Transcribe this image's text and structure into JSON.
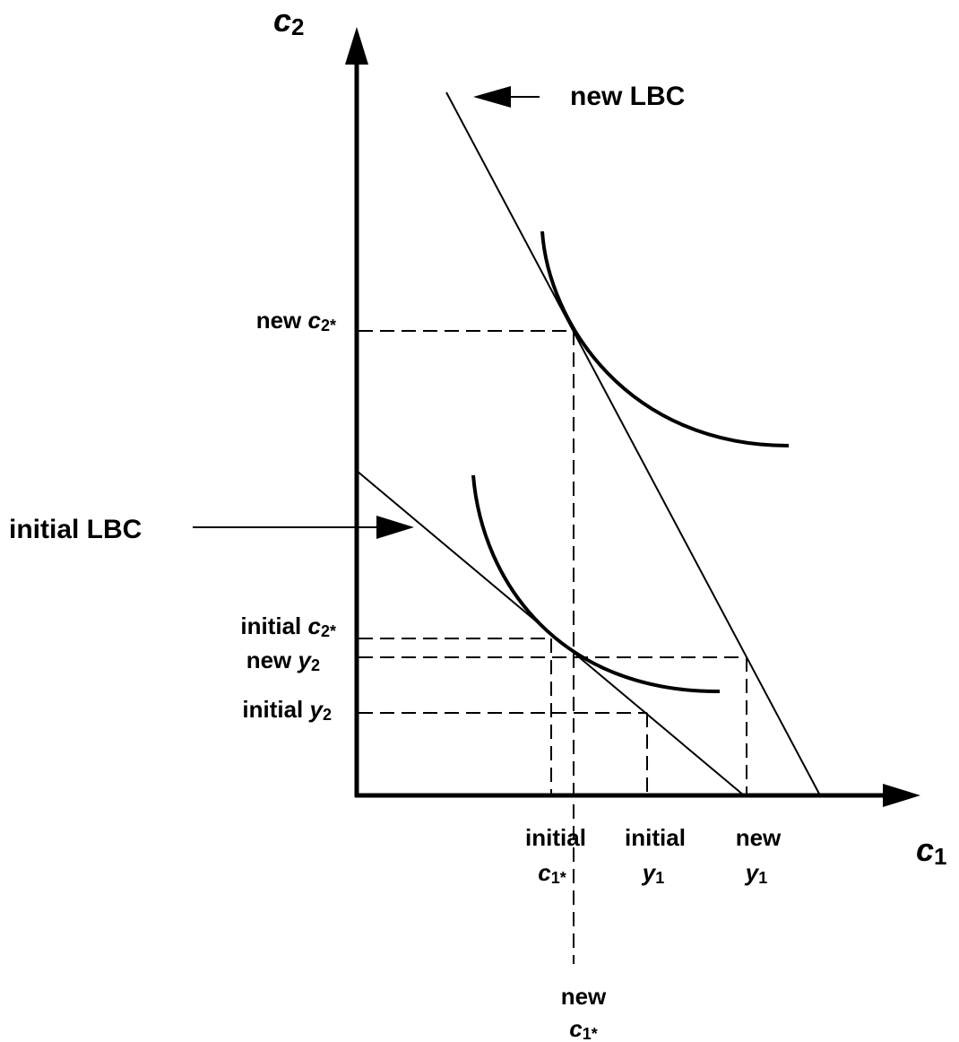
{
  "axes": {
    "y_label": {
      "var": "c",
      "sub": "2"
    },
    "x_label": {
      "var": "c",
      "sub": "1"
    }
  },
  "budget_lines": [
    {
      "label": "new LBC"
    },
    {
      "label": "initial LBC"
    }
  ],
  "y_markers": [
    {
      "prefix": "new",
      "var": "c",
      "sub": "2*"
    },
    {
      "prefix": "initial",
      "var": "c",
      "sub": "2*"
    },
    {
      "prefix": "new",
      "var": "y",
      "sub": "2"
    },
    {
      "prefix": "initial",
      "var": "y",
      "sub": "2"
    }
  ],
  "x_markers": [
    {
      "prefix": "initial",
      "var": "c",
      "sub": "1*"
    },
    {
      "prefix": "initial",
      "var": "y",
      "sub": "1"
    },
    {
      "prefix": "new",
      "var": "y",
      "sub": "1"
    },
    {
      "prefix": "new",
      "var": "c",
      "sub": "1*"
    }
  ]
}
